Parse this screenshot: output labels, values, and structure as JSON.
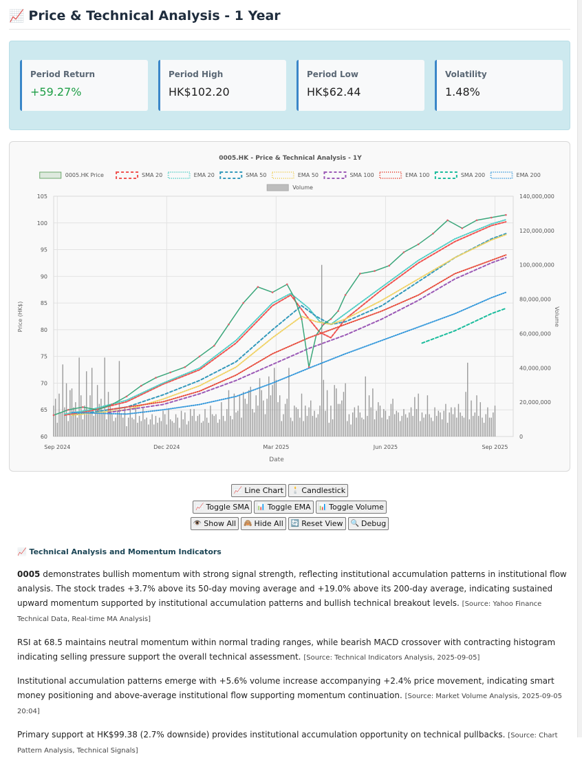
{
  "header": {
    "icon": "📈",
    "title": "Price & Technical Analysis - 1 Year"
  },
  "metrics": [
    {
      "label": "Period Return",
      "value": "+59.27%",
      "positive": true
    },
    {
      "label": "Period High",
      "value": "HK$102.20",
      "positive": false
    },
    {
      "label": "Period Low",
      "value": "HK$62.44",
      "positive": false
    },
    {
      "label": "Volatility",
      "value": "1.48%",
      "positive": false
    }
  ],
  "controls": {
    "row1": [
      {
        "icon": "📈",
        "label": "Line Chart"
      },
      {
        "icon": "🕯️",
        "label": "Candlestick"
      }
    ],
    "row2": [
      {
        "icon": "📈",
        "label": "Toggle SMA"
      },
      {
        "icon": "📊",
        "label": "Toggle EMA"
      },
      {
        "icon": "📊",
        "label": "Toggle Volume"
      }
    ],
    "row3": [
      {
        "icon": "👁️",
        "label": "Show All"
      },
      {
        "icon": "🙈",
        "label": "Hide All"
      },
      {
        "icon": "🔄",
        "label": "Reset View"
      },
      {
        "icon": "🔍",
        "label": "Debug"
      }
    ]
  },
  "analysis": {
    "icon": "📈",
    "heading": "Technical Analysis and Momentum Indicators",
    "p1_ticker": "0005",
    "p1_text": " demonstrates bullish momentum with strong signal strength, reflecting institutional accumulation patterns in institutional flow analysis. The stock trades +3.7% above its 50-day moving average and +19.0% above its 200-day average, indicating sustained upward momentum supported by institutional accumulation patterns and bullish technical breakout levels. ",
    "p1_source": "[Source: Yahoo Finance Technical Data, Real-time MA Analysis]",
    "p2_text": "RSI at 68.5 maintains neutral momentum within normal trading ranges, while bearish MACD crossover with contracting histogram indicating selling pressure support the overall technical assessment. ",
    "p2_source": "[Source: Technical Indicators Analysis, 2025-09-05]",
    "p3_text": "Institutional accumulation patterns emerge with +5.6% volume increase accompanying +2.4% price movement, indicating smart money positioning and above-average institutional flow supporting momentum continuation. ",
    "p3_source": "[Source: Market Volume Analysis, 2025-09-05 20:04]",
    "p4_text": "Primary support at HK$99.38 (2.7% downside) provides institutional accumulation opportunity on technical pullbacks. ",
    "p4_source": "[Source: Chart Pattern Analysis, Technical Signals]"
  },
  "chart_data": {
    "type": "line",
    "title": "0005.HK - Price & Technical Analysis - 1Y",
    "xlabel": "Date",
    "ylabel": "Price (HK$)",
    "y2label": "Volume",
    "ylim": [
      60,
      105
    ],
    "y2lim": [
      0,
      140000000
    ],
    "yticks": [
      "105",
      "100",
      "95",
      "90",
      "85",
      "80",
      "75",
      "70",
      "65",
      "60"
    ],
    "y2ticks": [
      "140,000,000",
      "120,000,000",
      "100,000,000",
      "80,000,000",
      "60,000,000",
      "40,000,000",
      "20,000,000",
      "0"
    ],
    "xticks": [
      {
        "label": "Sep 2024",
        "t": 0.1
      },
      {
        "label": "Dec 2024",
        "t": 3.1
      },
      {
        "label": "Mar 2025",
        "t": 6.1
      },
      {
        "label": "Jun 2025",
        "t": 9.1
      },
      {
        "label": "Sep 2025",
        "t": 12.1
      }
    ],
    "x_range_months": [
      0,
      12.6
    ],
    "legend_position": "top",
    "grid": true,
    "legend": [
      {
        "name": "0005.HK Price",
        "style": "box",
        "color": "#8fbc8f"
      },
      {
        "name": "SMA 20",
        "style": "dash",
        "color": "#ef5350"
      },
      {
        "name": "EMA 20",
        "style": "dot",
        "color": "#4ecdc4"
      },
      {
        "name": "SMA 50",
        "style": "dash",
        "color": "#3399bb"
      },
      {
        "name": "EMA 50",
        "style": "dot",
        "color": "#f0d264"
      },
      {
        "name": "SMA 100",
        "style": "dash",
        "color": "#9b59b6"
      },
      {
        "name": "EMA 100",
        "style": "dot",
        "color": "#e74c3c"
      },
      {
        "name": "SMA 200",
        "style": "dash",
        "color": "#1abc9c"
      },
      {
        "name": "EMA 200",
        "style": "dot",
        "color": "#3498db"
      },
      {
        "name": "Volume",
        "style": "box",
        "color": "#bdbdbd"
      }
    ],
    "price_series": {
      "name": "0005.HK Price",
      "x_months": [
        0.0,
        0.4,
        0.8,
        1.2,
        1.6,
        2.0,
        2.4,
        2.8,
        3.2,
        3.6,
        4.0,
        4.4,
        4.8,
        5.2,
        5.6,
        6.0,
        6.4,
        6.6,
        6.8,
        7.0,
        7.2,
        7.4,
        7.6,
        7.8,
        8.0,
        8.4,
        8.8,
        9.2,
        9.6,
        10.0,
        10.4,
        10.8,
        11.2,
        11.6,
        12.0,
        12.4
      ],
      "y_price": [
        64.0,
        65.0,
        65.5,
        65.0,
        66.0,
        67.5,
        69.5,
        71.0,
        72.0,
        73.0,
        75.0,
        77.0,
        81.0,
        85.0,
        88.0,
        87.0,
        88.5,
        86.0,
        82.0,
        73.0,
        79.0,
        81.0,
        82.0,
        83.5,
        86.5,
        90.5,
        91.0,
        92.0,
        94.5,
        96.0,
        98.0,
        100.5,
        99.0,
        100.5,
        101.0,
        101.5
      ]
    },
    "ma_series": [
      {
        "name": "SMA 20",
        "color": "#ef5350",
        "dash": "3,2",
        "x_months": [
          0.3,
          1,
          2,
          3,
          4,
          5,
          6,
          6.5,
          7,
          7.3,
          7.6,
          8,
          9,
          10,
          11,
          12,
          12.4
        ],
        "y": [
          64.0,
          64.8,
          66.5,
          69.8,
          72.5,
          77.5,
          84.5,
          86.5,
          82.0,
          79.5,
          78.5,
          82.0,
          87.5,
          92.5,
          96.5,
          99.5,
          100.2
        ]
      },
      {
        "name": "EMA 20",
        "color": "#4ecdc4",
        "dash": "1,2",
        "x_months": [
          0.3,
          1,
          2,
          3,
          4,
          5,
          6,
          6.5,
          7,
          7.3,
          7.6,
          8,
          9,
          10,
          11,
          12,
          12.4
        ],
        "y": [
          64.2,
          65.0,
          66.8,
          70.0,
          72.8,
          78.0,
          85.0,
          86.8,
          84.0,
          81.5,
          81.0,
          83.0,
          88.0,
          93.0,
          97.0,
          99.8,
          100.6
        ]
      },
      {
        "name": "SMA 50",
        "color": "#3399bb",
        "dash": "4,3",
        "x_months": [
          0.5,
          2,
          3,
          4,
          5,
          6,
          6.8,
          7.2,
          7.6,
          8,
          9,
          10,
          11,
          12,
          12.4
        ],
        "y": [
          64.0,
          65.5,
          67.8,
          70.5,
          74.0,
          80.0,
          84.5,
          82.5,
          81.0,
          81.5,
          84.5,
          89.0,
          93.5,
          97.0,
          98.0
        ]
      },
      {
        "name": "EMA 50",
        "color": "#f0d264",
        "dash": "1,2",
        "x_months": [
          0.5,
          2,
          3,
          4,
          5,
          6,
          6.8,
          7.2,
          7.6,
          8,
          9,
          10,
          11,
          12,
          12.4
        ],
        "y": [
          64.0,
          65.0,
          67.0,
          69.5,
          73.0,
          78.5,
          82.5,
          81.5,
          81.0,
          82.0,
          85.5,
          89.5,
          93.5,
          96.8,
          97.8
        ]
      },
      {
        "name": "SMA 100",
        "color": "#9b59b6",
        "dash": "4,3",
        "x_months": [
          1.5,
          3,
          4,
          5,
          6,
          7,
          8,
          9,
          10,
          11,
          12,
          12.4
        ],
        "y": [
          64.5,
          66.0,
          68.0,
          70.5,
          73.5,
          76.5,
          79.0,
          82.0,
          85.5,
          89.5,
          92.5,
          93.5
        ]
      },
      {
        "name": "EMA 100",
        "color": "#e74c3c",
        "dash": "1,2",
        "x_months": [
          1.5,
          3,
          4,
          5,
          6,
          7,
          8,
          9,
          10,
          11,
          12,
          12.4
        ],
        "y": [
          65.0,
          66.5,
          68.5,
          71.5,
          75.5,
          78.5,
          81.0,
          83.5,
          86.5,
          90.5,
          93.0,
          94.0
        ]
      },
      {
        "name": "EMA 200",
        "color": "#3498db",
        "dash": "1,2",
        "x_months": [
          0.5,
          2,
          3,
          4,
          5,
          6,
          7,
          8,
          9,
          10,
          11,
          12,
          12.4
        ],
        "y": [
          64.5,
          64.2,
          65.0,
          66.0,
          67.5,
          70.0,
          72.8,
          75.5,
          78.0,
          80.5,
          83.0,
          86.0,
          87.0
        ]
      },
      {
        "name": "SMA 200",
        "color": "#1abc9c",
        "dash": "4,3",
        "x_months": [
          10.1,
          11,
          12,
          12.4
        ],
        "y": [
          77.5,
          79.8,
          83.0,
          84.0
        ]
      }
    ],
    "volume_series": {
      "name": "Volume",
      "x_start_month": 0.0,
      "x_step_month": 0.05,
      "values_millions": [
        18,
        22,
        8,
        25,
        14,
        42,
        17,
        31,
        9,
        27,
        28,
        17,
        20,
        11,
        46,
        24,
        10,
        18,
        38,
        13,
        24,
        40,
        12,
        16,
        30,
        19,
        22,
        14,
        46,
        10,
        26,
        18,
        13,
        9,
        11,
        15,
        44,
        13,
        11,
        17,
        6,
        11,
        17,
        11,
        10,
        18,
        8,
        12,
        9,
        17,
        10,
        11,
        7,
        10,
        13,
        7,
        12,
        8,
        11,
        9,
        15,
        13,
        7,
        16,
        10,
        9,
        8,
        13,
        11,
        5,
        15,
        10,
        14,
        7,
        9,
        16,
        12,
        16,
        9,
        12,
        13,
        8,
        9,
        16,
        11,
        8,
        18,
        13,
        12,
        13,
        8,
        10,
        20,
        12,
        9,
        16,
        27,
        12,
        10,
        25,
        14,
        15,
        24,
        11,
        26,
        22,
        19,
        27,
        29,
        16,
        14,
        24,
        18,
        34,
        27,
        21,
        13,
        22,
        35,
        24,
        30,
        40,
        33,
        20,
        24,
        9,
        13,
        19,
        22,
        40,
        11,
        9,
        18,
        17,
        16,
        11,
        25,
        9,
        18,
        12,
        17,
        21,
        12,
        15,
        11,
        13,
        18,
        100,
        33,
        15,
        27,
        8,
        18,
        10,
        30,
        28,
        19,
        19,
        21,
        26,
        31,
        9,
        13,
        7,
        14,
        17,
        11,
        18,
        14,
        11,
        10,
        35,
        12,
        24,
        17,
        28,
        10,
        15,
        20,
        18,
        11,
        16,
        15,
        10,
        12,
        19,
        22,
        13,
        15,
        14,
        9,
        12,
        16,
        13,
        11,
        14,
        17,
        12,
        23,
        16,
        25,
        9,
        14,
        11,
        13,
        24,
        13,
        11,
        9,
        17,
        12,
        15,
        14,
        10,
        15,
        19,
        8,
        14,
        17,
        13,
        17,
        11,
        19,
        14,
        12,
        11,
        26,
        43,
        10,
        21,
        12,
        14,
        24,
        12,
        20,
        11,
        8,
        13,
        17,
        11,
        11,
        14,
        18
      ]
    }
  }
}
